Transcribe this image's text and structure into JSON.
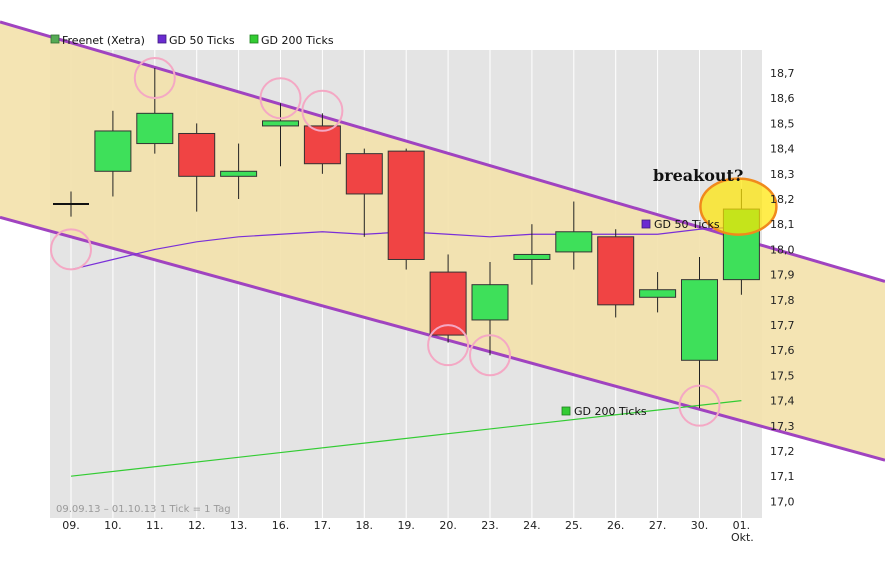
{
  "chart_data": {
    "type": "candlestick",
    "legend": [
      {
        "name": "Freenet (Xetra)",
        "color": "#55aa55"
      },
      {
        "name": "GD 50 Ticks",
        "color": "#6a2bd1"
      },
      {
        "name": "GD 200 Ticks",
        "color": "#33cc33"
      }
    ],
    "x_tick_labels": [
      "09.",
      "10.",
      "11.",
      "12.",
      "13.",
      "16.",
      "17.",
      "18.",
      "19.",
      "20.",
      "23.",
      "24.",
      "25.",
      "26.",
      "27.",
      "30.",
      "01."
    ],
    "x_tick_sublabel": "Okt.",
    "y_ticks": [
      "18,7",
      "18,6",
      "18,5",
      "18,4",
      "18,3",
      "18,2",
      "18,1",
      "18,0",
      "17,9",
      "17,8",
      "17,7",
      "17,6",
      "17,5",
      "17,4",
      "17,3",
      "17,2",
      "17,1",
      "17,0"
    ],
    "ylim": [
      16.95,
      18.75
    ],
    "date_range_text": "09.09.13 – 01.10.13",
    "tick_info_text": "1 Tick = 1 Tag",
    "candles": [
      {
        "date": "09.",
        "open": 18.18,
        "high": 18.23,
        "low": 18.13,
        "close": 18.18
      },
      {
        "date": "10.",
        "open": 18.31,
        "high": 18.55,
        "low": 18.21,
        "close": 18.47
      },
      {
        "date": "11.",
        "open": 18.42,
        "high": 18.72,
        "low": 18.38,
        "close": 18.54
      },
      {
        "date": "12.",
        "open": 18.46,
        "high": 18.5,
        "low": 18.15,
        "close": 18.29
      },
      {
        "date": "13.",
        "open": 18.29,
        "high": 18.42,
        "low": 18.2,
        "close": 18.31
      },
      {
        "date": "16.",
        "open": 18.49,
        "high": 18.58,
        "low": 18.33,
        "close": 18.51
      },
      {
        "date": "17.",
        "open": 18.49,
        "high": 18.54,
        "low": 18.3,
        "close": 18.34
      },
      {
        "date": "18.",
        "open": 18.38,
        "high": 18.4,
        "low": 18.05,
        "close": 18.22
      },
      {
        "date": "19.",
        "open": 18.39,
        "high": 18.4,
        "low": 17.92,
        "close": 17.96
      },
      {
        "date": "20.",
        "open": 17.91,
        "high": 17.98,
        "low": 17.63,
        "close": 17.66
      },
      {
        "date": "23.",
        "open": 17.72,
        "high": 17.95,
        "low": 17.58,
        "close": 17.86
      },
      {
        "date": "24.",
        "open": 17.96,
        "high": 18.1,
        "low": 17.86,
        "close": 17.98
      },
      {
        "date": "25.",
        "open": 17.99,
        "high": 18.19,
        "low": 17.92,
        "close": 18.07
      },
      {
        "date": "26.",
        "open": 18.05,
        "high": 18.08,
        "low": 17.73,
        "close": 17.78
      },
      {
        "date": "27.",
        "open": 17.81,
        "high": 17.91,
        "low": 17.75,
        "close": 17.84
      },
      {
        "date": "30.",
        "open": 17.56,
        "high": 17.97,
        "low": 17.37,
        "close": 17.88
      },
      {
        "date": "01.",
        "open": 17.88,
        "high": 18.24,
        "low": 17.82,
        "close": 18.16
      }
    ],
    "ma50": {
      "label": "GD 50 Ticks",
      "color": "#7a2fd8",
      "x": [
        "09.",
        "10.",
        "11.",
        "12.",
        "13.",
        "16.",
        "17.",
        "18.",
        "19.",
        "20.",
        "23.",
        "24.",
        "25.",
        "26.",
        "27.",
        "30.",
        "01."
      ],
      "values": [
        17.92,
        17.96,
        18.0,
        18.03,
        18.05,
        18.06,
        18.07,
        18.06,
        18.07,
        18.06,
        18.05,
        18.06,
        18.06,
        18.06,
        18.06,
        18.08,
        18.09
      ]
    },
    "ma200": {
      "label": "GD 200 Ticks",
      "color": "#33cc33",
      "x": [
        "09.",
        "01."
      ],
      "values": [
        17.1,
        17.4
      ]
    },
    "channel": {
      "fill": "#f3e2ad",
      "line_color": "#a043c0",
      "upper": [
        {
          "x": "09.",
          "y": 18.82
        },
        {
          "x": "01.",
          "y": 18.04
        }
      ],
      "lower": [
        {
          "x": "09.",
          "y": 18.05
        },
        {
          "x": "01.",
          "y": 17.32
        }
      ]
    },
    "touch_points": [
      {
        "x": "09.",
        "y": 18.0
      },
      {
        "x": "11.",
        "y": 18.68
      },
      {
        "x": "16.",
        "y": 18.6
      },
      {
        "x": "17.",
        "y": 18.55
      },
      {
        "x": "20.",
        "y": 17.62
      },
      {
        "x": "23.",
        "y": 17.58
      },
      {
        "x": "30.",
        "y": 17.38
      }
    ],
    "breakout": {
      "text": "breakout?",
      "x": "01.",
      "y": 18.15,
      "fill": "#ffe600",
      "stroke": "#f08a1c"
    }
  }
}
